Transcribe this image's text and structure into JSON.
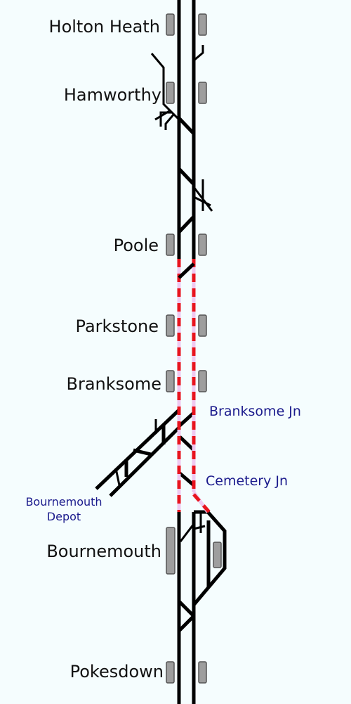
{
  "stations": [
    {
      "id": "holton-heath",
      "name": "Holton Heath"
    },
    {
      "id": "hamworthy",
      "name": "Hamworthy"
    },
    {
      "id": "poole",
      "name": "Poole"
    },
    {
      "id": "parkstone",
      "name": "Parkstone"
    },
    {
      "id": "branksome",
      "name": "Branksome"
    },
    {
      "id": "bournemouth",
      "name": "Bournemouth"
    },
    {
      "id": "pokesdown",
      "name": "Pokesdown"
    }
  ],
  "junctions": [
    {
      "id": "branksome-jn",
      "name": "Branksome Jn"
    },
    {
      "id": "cemetery-jn",
      "name": "Cemetery Jn"
    }
  ],
  "depot": {
    "line1": "Bournemouth",
    "line2": "Depot"
  },
  "colors": {
    "background": "#f5fdfe",
    "track": "#000000",
    "highlight_dash": "#e8141e",
    "highlight_under": "#f0c8f0",
    "platform_fill": "#9e9e9e",
    "platform_stroke": "#555555",
    "station_text": "#111111",
    "junction_text": "#1a1a8c"
  }
}
